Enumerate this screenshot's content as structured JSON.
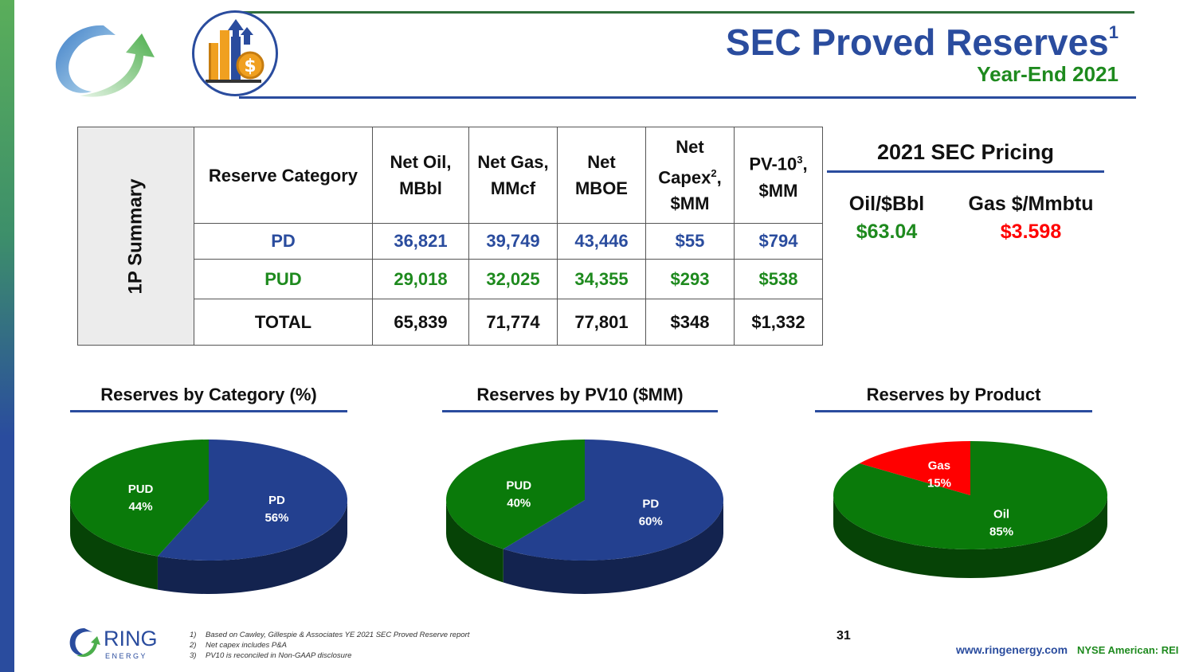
{
  "header": {
    "title": "SEC Proved Reserves",
    "title_sup": "1",
    "subtitle": "Year-End 2021"
  },
  "table": {
    "side_label": "1P Summary",
    "headers": {
      "category": "Reserve Category",
      "oil": [
        "Net Oil,",
        "MBbl"
      ],
      "gas": [
        "Net Gas,",
        "MMcf"
      ],
      "mboe": [
        "Net",
        "MBOE"
      ],
      "capex": [
        "Net",
        "Capex",
        "2",
        ",",
        "$MM"
      ],
      "pv10": [
        "PV-10",
        "3",
        ",",
        "$MM"
      ]
    },
    "rows": [
      {
        "category": "PD",
        "oil": "36,821",
        "gas": "39,749",
        "mboe": "43,446",
        "capex": "$55",
        "pv10": "$794"
      },
      {
        "category": "PUD",
        "oil": "29,018",
        "gas": "32,025",
        "mboe": "34,355",
        "capex": "$293",
        "pv10": "$538"
      },
      {
        "category": "TOTAL",
        "oil": "65,839",
        "gas": "71,774",
        "mboe": "77,801",
        "capex": "$348",
        "pv10": "$1,332"
      }
    ]
  },
  "pricing": {
    "title": "2021 SEC Pricing",
    "oil_label": "Oil/$Bbl",
    "oil_value": "$63.04",
    "gas_label": "Gas $/Mmbtu",
    "gas_value": "$3.598"
  },
  "chart_data": [
    {
      "type": "pie",
      "title": "Reserves by Category (%)",
      "slices": [
        {
          "label": "PD",
          "display": "56%",
          "value": 56,
          "color": "#23408f"
        },
        {
          "label": "PUD",
          "display": "44%",
          "value": 44,
          "color": "#0a7a0a"
        }
      ]
    },
    {
      "type": "pie",
      "title": "Reserves by PV10 ($MM)",
      "slices": [
        {
          "label": "PD",
          "display": "60%",
          "value": 60,
          "color": "#23408f"
        },
        {
          "label": "PUD",
          "display": "40%",
          "value": 40,
          "color": "#0a7a0a"
        }
      ]
    },
    {
      "type": "pie",
      "title": "Reserves by Product",
      "slices": [
        {
          "label": "Oil",
          "display": "85%",
          "value": 85,
          "color": "#0a7a0a"
        },
        {
          "label": "Gas",
          "display": "15%",
          "value": 15,
          "color": "#ff0000"
        }
      ]
    }
  ],
  "footer": {
    "logo_word": "RING",
    "logo_sub": "E N E R G Y",
    "footnotes": [
      {
        "num": "1)",
        "text": "Based on Cawley, Gillespie & Associates YE 2021 SEC Proved Reserve report"
      },
      {
        "num": "2)",
        "text": "Net capex includes P&A"
      },
      {
        "num": "3)",
        "text": "PV10 is reconciled in Non-GAAP disclosure"
      }
    ],
    "page_number": "31",
    "url": "www.ringenergy.com",
    "ticker": "NYSE American: REI"
  },
  "colors": {
    "blue": "#2a4c9e",
    "green": "#1e8a1e",
    "red": "#ff0000"
  },
  "icons": [
    "company-logo-swoosh-icon",
    "reserves-chart-dollar-icon",
    "ring-energy-logo-icon"
  ]
}
